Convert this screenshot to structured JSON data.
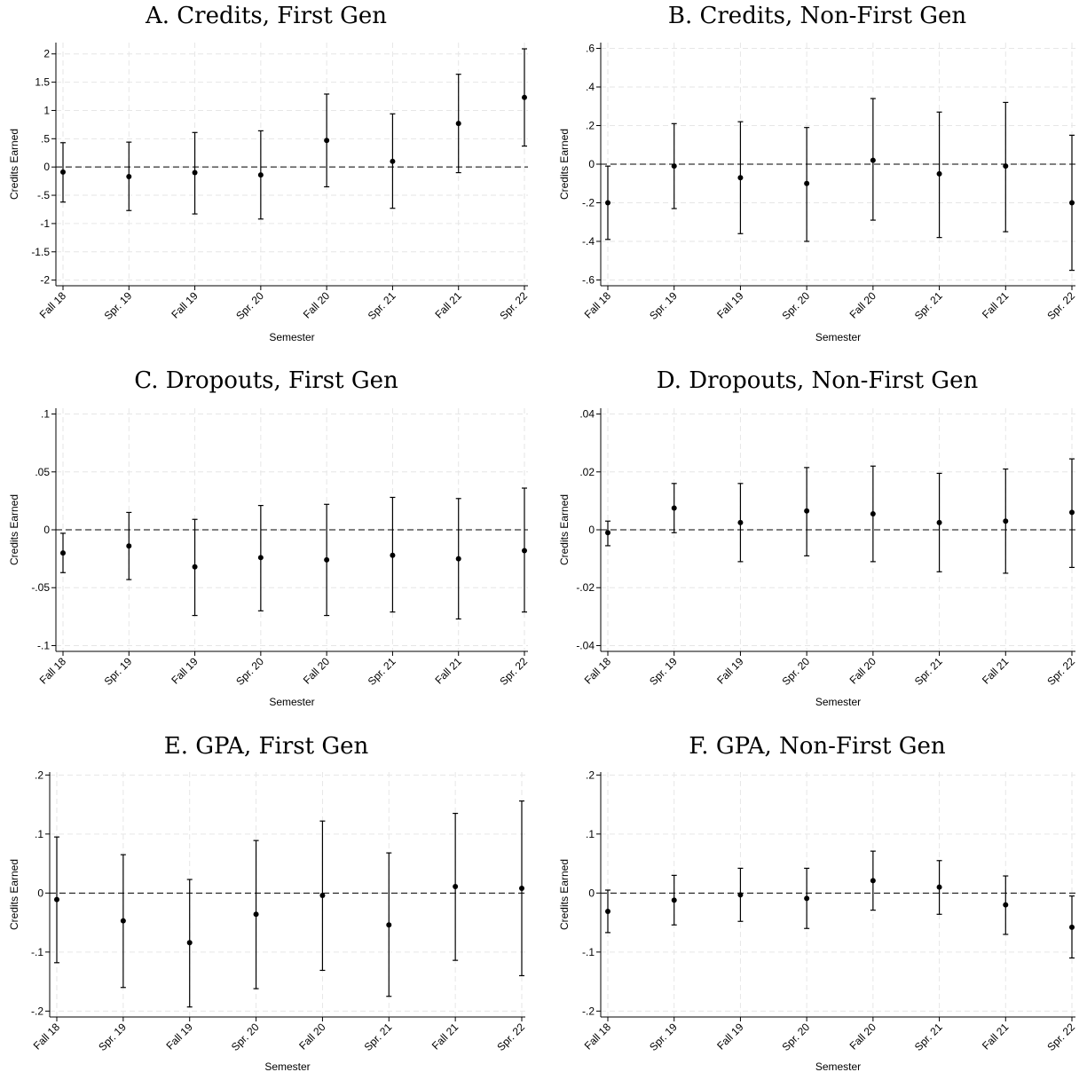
{
  "chart_data": [
    {
      "type": "scatter",
      "title": "A. Credits, First Gen",
      "xlabel": "Semester",
      "ylabel": "Credits Earned",
      "categories": [
        "Fall 18",
        "Spr. 19",
        "Fall 19",
        "Spr. 20",
        "Fall 20",
        "Spr. 21",
        "Fall 21",
        "Spr. 22"
      ],
      "ylim": [
        -2.1,
        2.2
      ],
      "yticks": [
        -2,
        -1.5,
        -1,
        -0.5,
        0,
        0.5,
        1,
        1.5,
        2
      ],
      "ytick_labels": [
        "-2",
        "-1.5",
        "-1",
        "-.5",
        "0",
        ".5",
        "1",
        "1.5",
        "2"
      ],
      "reference_line": 0,
      "grid": true,
      "values": [
        -0.09,
        -0.17,
        -0.1,
        -0.14,
        0.47,
        0.1,
        0.77,
        1.23
      ],
      "ci_low": [
        -0.62,
        -0.77,
        -0.83,
        -0.92,
        -0.35,
        -0.73,
        -0.1,
        0.37
      ],
      "ci_high": [
        0.43,
        0.44,
        0.61,
        0.64,
        1.29,
        0.94,
        1.64,
        2.09
      ]
    },
    {
      "type": "scatter",
      "title": "B. Credits, Non-First Gen",
      "xlabel": "Semester",
      "ylabel": "Credits Earned",
      "categories": [
        "Fall 18",
        "Spr. 19",
        "Fall 19",
        "Spr. 20",
        "Fall 20",
        "Spr. 21",
        "Fall 21",
        "Spr. 22"
      ],
      "ylim": [
        -0.63,
        0.63
      ],
      "yticks": [
        -0.6,
        -0.4,
        -0.2,
        0,
        0.2,
        0.4,
        0.6
      ],
      "ytick_labels": [
        "-.6",
        "-.4",
        "-.2",
        "0",
        ".2",
        ".4",
        ".6"
      ],
      "reference_line": 0,
      "grid": true,
      "values": [
        -0.2,
        -0.01,
        -0.07,
        -0.1,
        0.02,
        -0.05,
        -0.01,
        -0.2
      ],
      "ci_low": [
        -0.39,
        -0.23,
        -0.36,
        -0.4,
        -0.29,
        -0.38,
        -0.35,
        -0.55
      ],
      "ci_high": [
        -0.01,
        0.21,
        0.22,
        0.19,
        0.34,
        0.27,
        0.32,
        0.15
      ]
    },
    {
      "type": "scatter",
      "title": "C. Dropouts, First Gen",
      "xlabel": "Semester",
      "ylabel": "Credits Earned",
      "categories": [
        "Fall 18",
        "Spr. 19",
        "Fall 19",
        "Spr. 20",
        "Fall 20",
        "Spr. 21",
        "Fall 21",
        "Spr. 22"
      ],
      "ylim": [
        -0.105,
        0.105
      ],
      "yticks": [
        -0.1,
        -0.05,
        0,
        0.05,
        0.1
      ],
      "ytick_labels": [
        "-.1",
        "-.05",
        "0",
        ".05",
        ".1"
      ],
      "reference_line": 0,
      "grid": true,
      "values": [
        -0.02,
        -0.014,
        -0.032,
        -0.024,
        -0.026,
        -0.022,
        -0.025,
        -0.018
      ],
      "ci_low": [
        -0.037,
        -0.043,
        -0.074,
        -0.07,
        -0.074,
        -0.071,
        -0.077,
        -0.071
      ],
      "ci_high": [
        -0.003,
        0.015,
        0.009,
        0.021,
        0.022,
        0.028,
        0.027,
        0.036
      ]
    },
    {
      "type": "scatter",
      "title": "D. Dropouts, Non-First Gen",
      "xlabel": "Semester",
      "ylabel": "Credits Earned",
      "categories": [
        "Fall 18",
        "Spr. 19",
        "Fall 19",
        "Spr. 20",
        "Fall 20",
        "Spr. 21",
        "Fall 21",
        "Spr. 22"
      ],
      "ylim": [
        -0.042,
        0.042
      ],
      "yticks": [
        -0.04,
        -0.02,
        0,
        0.02,
        0.04
      ],
      "ytick_labels": [
        "-.04",
        "-.02",
        "0",
        ".02",
        ".04"
      ],
      "reference_line": 0,
      "grid": true,
      "values": [
        -0.001,
        0.0075,
        0.0025,
        0.0065,
        0.0055,
        0.0025,
        0.003,
        0.006
      ],
      "ci_low": [
        -0.0055,
        -0.001,
        -0.011,
        -0.009,
        -0.011,
        -0.0145,
        -0.015,
        -0.013
      ],
      "ci_high": [
        0.003,
        0.016,
        0.016,
        0.0215,
        0.022,
        0.0195,
        0.021,
        0.0245
      ]
    },
    {
      "type": "scatter",
      "title": "E. GPA, First Gen",
      "xlabel": "Semester",
      "ylabel": "Credits Earned",
      "categories": [
        "Fall 18",
        "Spr. 19",
        "Fall 19",
        "Spr. 20",
        "Fall 20",
        "Spr. 21",
        "Fall 21",
        "Spr. 22"
      ],
      "ylim": [
        -0.21,
        0.205
      ],
      "yticks": [
        -0.2,
        -0.1,
        0,
        0.1,
        0.2
      ],
      "ytick_labels": [
        "-.2",
        "-.1",
        "0",
        ".1",
        ".2"
      ],
      "reference_line": 0,
      "grid": true,
      "values": [
        -0.011,
        -0.047,
        -0.084,
        -0.036,
        -0.004,
        -0.054,
        0.011,
        0.008
      ],
      "ci_low": [
        -0.118,
        -0.16,
        -0.193,
        -0.162,
        -0.131,
        -0.175,
        -0.114,
        -0.14
      ],
      "ci_high": [
        0.095,
        0.065,
        0.023,
        0.089,
        0.122,
        0.068,
        0.135,
        0.156
      ]
    },
    {
      "type": "scatter",
      "title": "F. GPA, Non-First Gen",
      "xlabel": "Semester",
      "ylabel": "Credits Earned",
      "categories": [
        "Fall 18",
        "Spr. 19",
        "Fall 19",
        "Spr. 20",
        "Fall 20",
        "Spr. 21",
        "Fall 21",
        "Spr. 22"
      ],
      "ylim": [
        -0.21,
        0.205
      ],
      "yticks": [
        -0.2,
        -0.1,
        0,
        0.1,
        0.2
      ],
      "ytick_labels": [
        "-.2",
        "-.1",
        "0",
        ".1",
        ".2"
      ],
      "reference_line": 0,
      "grid": true,
      "values": [
        -0.031,
        -0.012,
        -0.003,
        -0.009,
        0.021,
        0.01,
        -0.02,
        -0.058
      ],
      "ci_low": [
        -0.067,
        -0.054,
        -0.048,
        -0.06,
        -0.029,
        -0.036,
        -0.07,
        -0.11
      ],
      "ci_high": [
        0.005,
        0.03,
        0.042,
        0.042,
        0.071,
        0.055,
        0.029,
        -0.005
      ]
    }
  ]
}
